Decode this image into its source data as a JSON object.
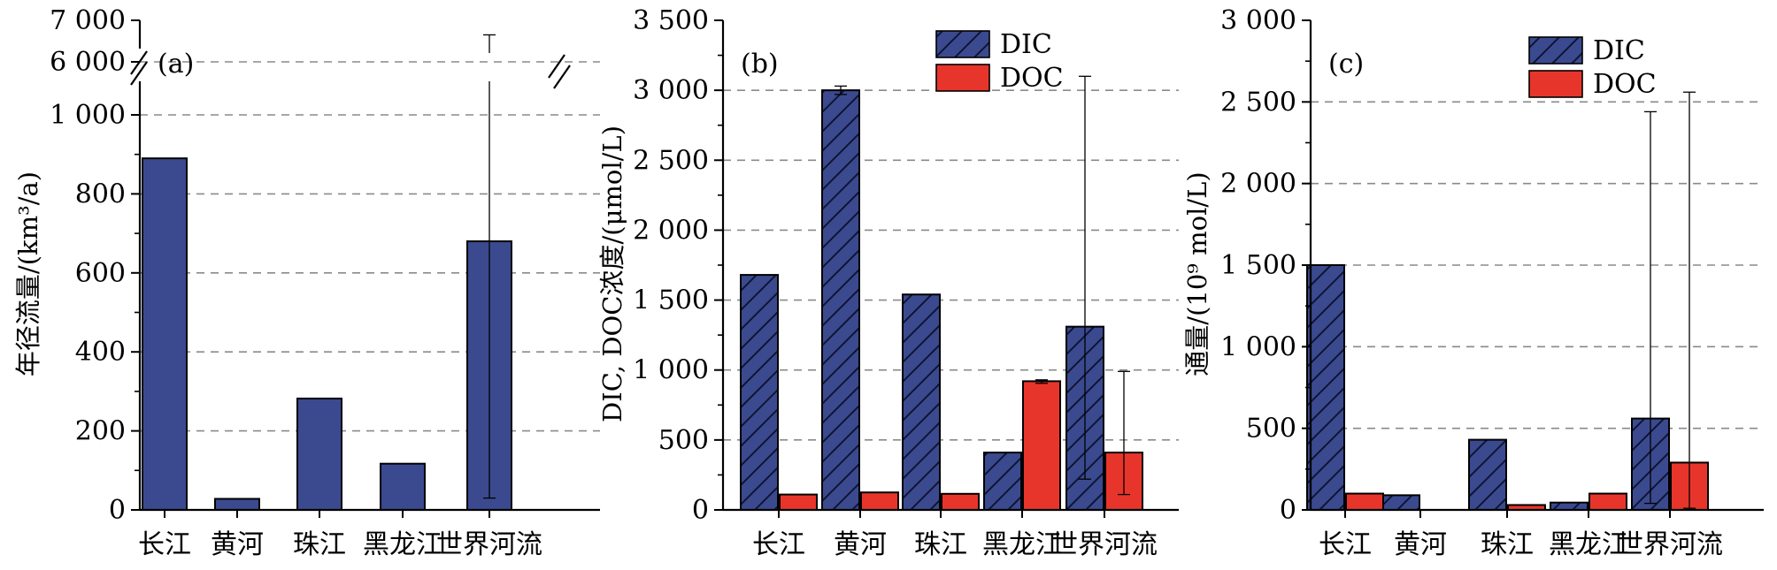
{
  "colors": {
    "dic": "#3b4a8f",
    "doc": "#e8352b",
    "grid": "#8a8a8a",
    "axis": "#000000"
  },
  "chart_data": [
    {
      "type": "bar",
      "panel": "(a)",
      "ylabel": "年径流量/(km³/a)",
      "categories": [
        "长江",
        "黄河",
        "珠江",
        "黑龙江",
        "世界河流"
      ],
      "axis_break": {
        "lower": [
          0,
          1000
        ],
        "upper": [
          6000,
          7000
        ]
      },
      "yticks": [
        "0",
        "200",
        "400",
        "600",
        "800",
        "1 000",
        "6 000",
        "7 000"
      ],
      "grid": true,
      "series": [
        {
          "values": [
            890,
            28,
            282,
            117,
            680
          ],
          "errors": [
            null,
            null,
            null,
            null,
            [
              30,
              6650
            ]
          ]
        }
      ]
    },
    {
      "type": "bar",
      "panel": "(b)",
      "ylabel": "DIC, DOC浓度/(μmol/L)",
      "ylim": [
        0,
        3500
      ],
      "yticks": [
        "0",
        "500",
        "1 000",
        "1 500",
        "2 000",
        "2 500",
        "3 000",
        "3 500"
      ],
      "categories": [
        "长江",
        "黄河",
        "珠江",
        "黑龙江",
        "世界河流"
      ],
      "grid": true,
      "legend": "top-center",
      "series": [
        {
          "name": "DIC",
          "hatch": true,
          "values": [
            1680,
            3000,
            1540,
            410,
            1310
          ],
          "errors": [
            null,
            [
              2970,
              3030
            ],
            null,
            null,
            [
              220,
              3100
            ]
          ]
        },
        {
          "name": "DOC",
          "hatch": false,
          "values": [
            110,
            125,
            115,
            920,
            410
          ],
          "errors": [
            null,
            null,
            null,
            [
              905,
              930
            ],
            [
              110,
              990
            ]
          ]
        }
      ]
    },
    {
      "type": "bar",
      "panel": "(c)",
      "ylabel": "通量/(10⁹ mol/L)",
      "ylim": [
        0,
        3000
      ],
      "yticks": [
        "0",
        "500",
        "1 000",
        "1 500",
        "2 000",
        "2 500",
        "3 000"
      ],
      "categories": [
        "长江",
        "黄河",
        "珠江",
        "黑龙江",
        "世界河流"
      ],
      "grid": true,
      "legend": "top-center",
      "series": [
        {
          "name": "DIC",
          "hatch": true,
          "values": [
            1500,
            90,
            430,
            45,
            560
          ],
          "errors": [
            null,
            null,
            null,
            null,
            [
              40,
              2440
            ]
          ]
        },
        {
          "name": "DOC",
          "hatch": false,
          "values": [
            100,
            null,
            30,
            100,
            290
          ],
          "errors": [
            null,
            null,
            null,
            null,
            [
              10,
              2560
            ]
          ]
        }
      ]
    }
  ]
}
